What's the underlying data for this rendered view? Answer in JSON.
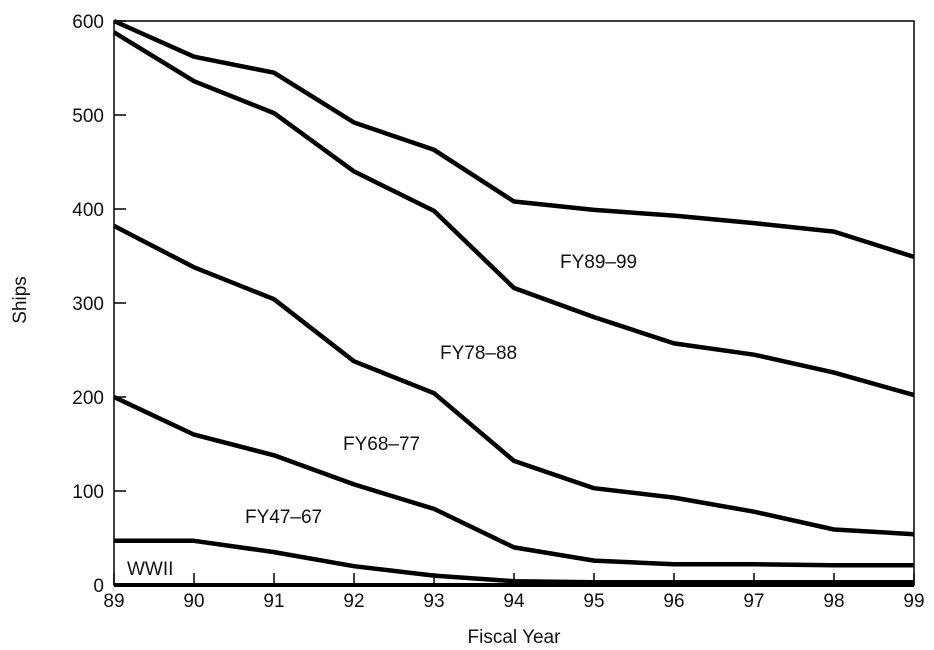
{
  "chart_data": {
    "type": "area",
    "title": "",
    "xlabel": "Fiscal Year",
    "ylabel": "Ships",
    "x": [
      89,
      90,
      91,
      92,
      93,
      94,
      95,
      96,
      97,
      98,
      99
    ],
    "x_tick_labels": [
      "89",
      "90",
      "91",
      "92",
      "93",
      "94",
      "95",
      "96",
      "97",
      "98",
      "99"
    ],
    "xlim": [
      89,
      99
    ],
    "ylim": [
      0,
      600
    ],
    "y_ticks": [
      0,
      100,
      200,
      300,
      400,
      500,
      600
    ],
    "stacked": true,
    "grid": false,
    "legend": "none",
    "line_color": "#000000",
    "series": [
      {
        "name": "WWII",
        "values": [
          47,
          47,
          35,
          20,
          10,
          4,
          3,
          3,
          3,
          3,
          3
        ]
      },
      {
        "name": "FY47–67",
        "values": [
          200,
          160,
          138,
          107,
          81,
          40,
          26,
          22,
          22,
          21,
          21
        ]
      },
      {
        "name": "FY68–77",
        "values": [
          382,
          338,
          304,
          238,
          204,
          132,
          103,
          93,
          78,
          59,
          54
        ]
      },
      {
        "name": "FY78–88",
        "values": [
          588,
          536,
          502,
          440,
          398,
          316,
          285,
          257,
          245,
          226,
          202
        ]
      },
      {
        "name": "FY89–99",
        "values": [
          600,
          562,
          545,
          492,
          463,
          408,
          399,
          393,
          385,
          376,
          349
        ]
      }
    ]
  }
}
